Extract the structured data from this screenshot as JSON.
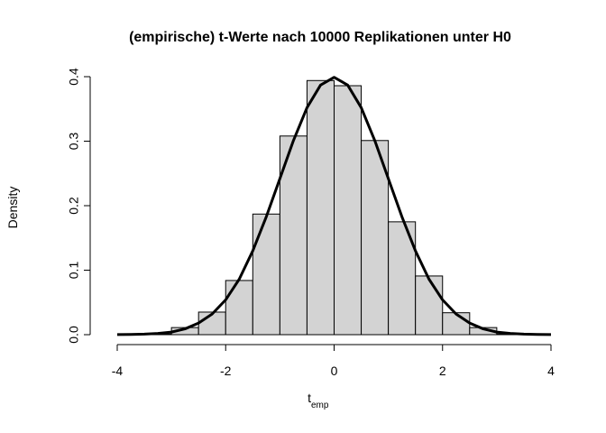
{
  "chart_data": {
    "type": "histogram",
    "title": "(empirische) t-Werte nach 10000 Replikationen unter H0",
    "xlabel": {
      "main": "t",
      "sub": "emp"
    },
    "ylabel": "Density",
    "bins": [
      -4.5,
      -4,
      -3.5,
      -3,
      -2.5,
      -2,
      -1.5,
      -1,
      -0.5,
      0,
      0.5,
      1,
      1.5,
      2,
      2.5,
      3,
      3.5,
      4
    ],
    "values": [
      0,
      0,
      0.001,
      0.011,
      0.035,
      0.084,
      0.187,
      0.308,
      0.394,
      0.386,
      0.301,
      0.175,
      0.091,
      0.034,
      0.011,
      0.001,
      0
    ],
    "color": "#d3d3d3",
    "curve": {
      "type": "line",
      "color": "#000000",
      "x": [
        -4,
        -3.75,
        -3.5,
        -3.25,
        -3,
        -2.75,
        -2.5,
        -2.25,
        -2,
        -1.75,
        -1.5,
        -1.25,
        -1,
        -0.75,
        -0.5,
        -0.25,
        0,
        0.25,
        0.5,
        0.75,
        1,
        1.25,
        1.5,
        1.75,
        2,
        2.25,
        2.5,
        2.75,
        3,
        3.25,
        3.5,
        3.75,
        4
      ],
      "values": [
        0.0001,
        0.0004,
        0.0009,
        0.002,
        0.004,
        0.009,
        0.018,
        0.032,
        0.054,
        0.086,
        0.13,
        0.183,
        0.242,
        0.301,
        0.352,
        0.387,
        0.399,
        0.387,
        0.352,
        0.301,
        0.242,
        0.183,
        0.13,
        0.086,
        0.054,
        0.032,
        0.018,
        0.009,
        0.004,
        0.002,
        0.0009,
        0.0004,
        0.0001
      ]
    },
    "xlim": [
      -4,
      4
    ],
    "xticks": [
      -4,
      -2,
      0,
      2,
      4
    ],
    "ylim": [
      0,
      0.4
    ],
    "yticks": [
      {
        "value": 0,
        "label": "0.0"
      },
      0.1,
      0.2,
      0.3,
      0.4
    ]
  }
}
